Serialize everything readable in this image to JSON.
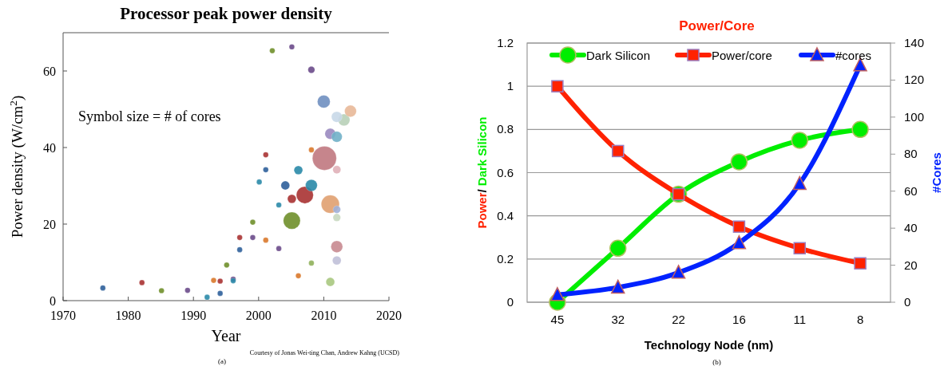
{
  "chart_data": [
    {
      "type": "bubble",
      "title": "Processor peak power density",
      "xlabel": "Year",
      "ylabel": "Power density (W/cm$^{2}$)",
      "x": [
        1976.1,
        1982.1,
        1985.1,
        1989.1,
        1992.1,
        1993.1,
        1994.1,
        1994.1,
        1995.1,
        1996.1,
        1996.1,
        1997.1,
        1997.1,
        1999.1,
        1999.1,
        2000.1,
        2001.1,
        2001.1,
        2001.1,
        2002.1,
        2003.1,
        2003.1,
        2004.1,
        2005.1,
        2005.1,
        2005.1,
        2006.1,
        2006.1,
        2007.1,
        2008.1,
        2008.1,
        2008.1,
        2008.1,
        2010,
        2010.1,
        2011,
        2011,
        2011,
        2012,
        2012,
        2012,
        2012,
        2012,
        2012,
        2012,
        2013.1,
        2014.1
      ],
      "values": [
        3.3,
        4.7,
        2.6,
        2.7,
        0.9,
        5.3,
        5.1,
        1.9,
        9.3,
        5.6,
        5.2,
        16.5,
        13.3,
        20.5,
        16.5,
        31,
        38.1,
        34.2,
        15.8,
        65.3,
        25,
        13.6,
        30.1,
        66.3,
        26.6,
        20.9,
        34.1,
        6.5,
        27.6,
        60.3,
        39.4,
        30.1,
        9.8,
        52,
        37.2,
        43.6,
        25.2,
        4.9,
        48,
        42.8,
        34.2,
        23.8,
        21.7,
        14.1,
        10.5,
        47.2,
        49.5
      ],
      "sizes": [
        0.05,
        0.05,
        0.05,
        0.05,
        0.05,
        0.05,
        0.05,
        0.05,
        0.05,
        0.05,
        0.05,
        0.05,
        0.05,
        0.05,
        0.05,
        0.05,
        0.05,
        0.05,
        0.05,
        0.05,
        0.05,
        0.05,
        0.13,
        0.05,
        0.13,
        0.5,
        0.13,
        0.05,
        0.5,
        0.08,
        0.05,
        0.24,
        0.05,
        0.28,
        1,
        0.2,
        0.57,
        0.13,
        0.2,
        0.2,
        0.11,
        0.1,
        0.1,
        0.24,
        0.13,
        0.24,
        0.24
      ],
      "colors": [
        "#2d5f9a",
        "#a83232",
        "#6f8f2a",
        "#6a4a8a",
        "#2a8aa8",
        "#d9782a",
        "#a83232",
        "#2d5f9a",
        "#6f8f2a",
        "#6a4a8a",
        "#2a8aa8",
        "#a83232",
        "#2d5f9a",
        "#6f8f2a",
        "#6a4a8a",
        "#2a8aa8",
        "#a83232",
        "#2d5f9a",
        "#d9782a",
        "#6f8f2a",
        "#2a8aa8",
        "#6a4a8a",
        "#2d5f9a",
        "#6a4a8a",
        "#a83232",
        "#6f8f2a",
        "#2a8aa8",
        "#d9782a",
        "#a83232",
        "#6a4a8a",
        "#d9782a",
        "#2a8aa8",
        "#8fb05a",
        "#6f8fc0",
        "#c07880",
        "#9a8ac0",
        "#e0a070",
        "#a8c880",
        "#c8d8e8",
        "#70b0c8",
        "#e0b0b8",
        "#a0b0d8",
        "#c8d8c0",
        "#c88a90",
        "#c0c0d8",
        "#b8d0b8",
        "#e8b898"
      ],
      "xlim": [
        1970,
        2020
      ],
      "xticks": [
        1970,
        1980,
        1990,
        2000,
        2010,
        2020
      ],
      "ylim": [
        0,
        70
      ],
      "yticks": [
        0,
        20,
        40,
        60
      ],
      "annotations": [
        "Symbol size = # of cores",
        "Courtesy of Jonas Wei-ting Chan, Andrew Kahng (UCSD)",
        "(a)"
      ]
    },
    {
      "type": "line",
      "title": "Power/Core",
      "xlabel": "Technology Node (nm)",
      "ylabel": "Power/ Dark Silicon",
      "y2label": "#Cores",
      "categories": [
        "45",
        "32",
        "22",
        "16",
        "11",
        "8"
      ],
      "series": [
        {
          "name": "Dark Silicon",
          "color": "#00ee00",
          "marker": "circle",
          "values": [
            0,
            0.25,
            0.5,
            0.65,
            0.75,
            0.8
          ]
        },
        {
          "name": "Power/core",
          "color": "#ff2200",
          "marker": "square",
          "values": [
            1,
            0.7,
            0.5,
            0.35,
            0.25,
            0.18
          ]
        },
        {
          "name": "#cores",
          "color": "#0022ff",
          "marker": "triangle",
          "axis": "y2",
          "values": [
            4,
            8,
            16,
            32,
            64,
            128
          ]
        }
      ],
      "ylim": [
        0,
        1.2
      ],
      "yticks": [
        0,
        0.2,
        0.4,
        0.6,
        0.8,
        1,
        1.2
      ],
      "y2lim": [
        0,
        140
      ],
      "y2ticks": [
        0,
        20,
        40,
        60,
        80,
        100,
        120,
        140
      ],
      "grid": "y",
      "legend": "top",
      "annotations": [
        "(b)"
      ]
    }
  ]
}
